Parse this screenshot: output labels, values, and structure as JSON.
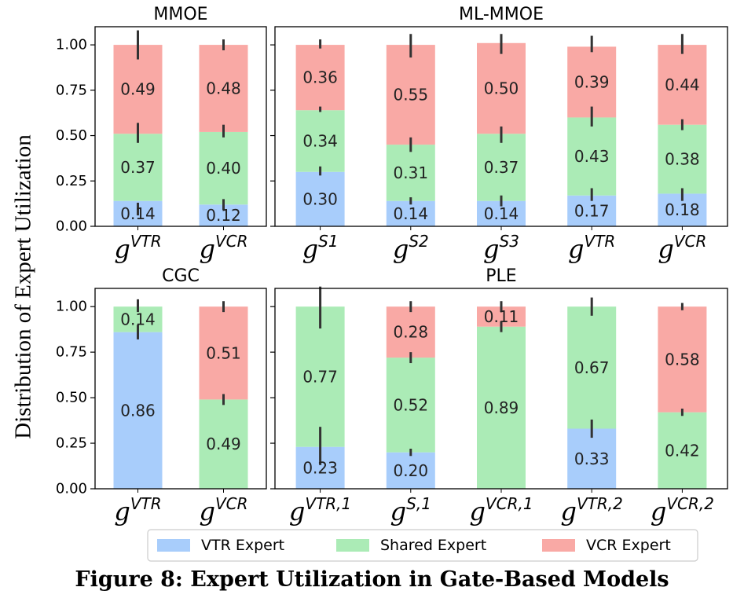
{
  "figure": {
    "ylabel": "Distribution of Expert Utilization",
    "caption": "Figure 8: Expert Utilization in Gate-Based Models"
  },
  "colors": {
    "vtr": "#a8cdfb",
    "shared": "#abebb6",
    "vcr": "#f9a9a5",
    "error": "#333333"
  },
  "legend": {
    "placement": "bottom-center",
    "items": [
      {
        "key": "vtr",
        "label": "VTR Expert"
      },
      {
        "key": "shared",
        "label": "Shared Expert"
      },
      {
        "key": "vcr",
        "label": "VCR Expert"
      }
    ]
  },
  "chart_data": [
    {
      "type": "bar",
      "stacked": true,
      "title": "MMOE",
      "ylim": [
        0,
        1.1
      ],
      "yticks": [
        "0.00",
        "0.25",
        "0.50",
        "0.75",
        "1.00"
      ],
      "categories": [
        {
          "base": "g",
          "sup": "VTR"
        },
        {
          "base": "g",
          "sup": "VCR"
        }
      ],
      "segments": [
        {
          "values": [
            0.14,
            0.37,
            0.49
          ],
          "labels": [
            "0.14",
            "0.37",
            "0.49"
          ],
          "errors": [
            [
              0.06,
              0.13
            ],
            [
              0.46,
              0.57
            ],
            [
              0.92,
              1.08
            ]
          ]
        },
        {
          "values": [
            0.12,
            0.4,
            0.48
          ],
          "labels": [
            "0.12",
            "0.40",
            "0.48"
          ],
          "errors": [
            [
              0.09,
              0.15
            ],
            [
              0.49,
              0.56
            ],
            [
              0.97,
              1.03
            ]
          ]
        }
      ]
    },
    {
      "type": "bar",
      "stacked": true,
      "title": "ML-MMOE",
      "ylim": [
        0,
        1.1
      ],
      "categories": [
        {
          "base": "g",
          "sup": "S1"
        },
        {
          "base": "g",
          "sup": "S2"
        },
        {
          "base": "g",
          "sup": "S3"
        },
        {
          "base": "g",
          "sup": "VTR"
        },
        {
          "base": "g",
          "sup": "VCR"
        }
      ],
      "segments": [
        {
          "values": [
            0.3,
            0.34,
            0.36
          ],
          "labels": [
            "0.30",
            "0.34",
            "0.36"
          ],
          "errors": [
            [
              0.28,
              0.33
            ],
            [
              0.63,
              0.66
            ],
            [
              0.98,
              1.03
            ]
          ]
        },
        {
          "values": [
            0.14,
            0.31,
            0.55
          ],
          "labels": [
            "0.14",
            "0.31",
            "0.55"
          ],
          "errors": [
            [
              0.12,
              0.16
            ],
            [
              0.41,
              0.49
            ],
            [
              0.93,
              1.06
            ]
          ]
        },
        {
          "values": [
            0.14,
            0.37,
            0.5
          ],
          "labels": [
            "0.14",
            "0.37",
            "0.50"
          ],
          "errors": [
            [
              0.11,
              0.17
            ],
            [
              0.46,
              0.55
            ],
            [
              0.95,
              1.06
            ]
          ]
        },
        {
          "values": [
            0.17,
            0.43,
            0.39
          ],
          "labels": [
            "0.17",
            "0.43",
            "0.39"
          ],
          "errors": [
            [
              0.14,
              0.21
            ],
            [
              0.55,
              0.66
            ],
            [
              0.96,
              1.05
            ]
          ]
        },
        {
          "values": [
            0.18,
            0.38,
            0.44
          ],
          "labels": [
            "0.18",
            "0.38",
            "0.44"
          ],
          "errors": [
            [
              0.14,
              0.21
            ],
            [
              0.53,
              0.59
            ],
            [
              0.95,
              1.06
            ]
          ]
        }
      ]
    },
    {
      "type": "bar",
      "stacked": true,
      "title": "CGC",
      "ylim": [
        0,
        1.1
      ],
      "yticks": [
        "0.00",
        "0.25",
        "0.50",
        "0.75",
        "1.00"
      ],
      "categories": [
        {
          "base": "g",
          "sup": "VTR"
        },
        {
          "base": "g",
          "sup": "VCR"
        }
      ],
      "segments": [
        {
          "values": [
            0.86,
            0.14,
            0
          ],
          "labels": [
            "0.86",
            "0.14",
            ""
          ],
          "errors": [
            [
              0.82,
              0.9
            ],
            [
              0.97,
              1.04
            ],
            null
          ]
        },
        {
          "values": [
            0,
            0.49,
            0.51
          ],
          "labels": [
            "",
            "0.49",
            "0.51"
          ],
          "errors": [
            null,
            [
              0.46,
              0.52
            ],
            [
              0.97,
              1.03
            ]
          ]
        }
      ]
    },
    {
      "type": "bar",
      "stacked": true,
      "title": "PLE",
      "ylim": [
        0,
        1.1
      ],
      "categories": [
        {
          "base": "g",
          "sup": "VTR,1"
        },
        {
          "base": "g",
          "sup": "S,1"
        },
        {
          "base": "g",
          "sup": "VCR,1"
        },
        {
          "base": "g",
          "sup": "VTR,2"
        },
        {
          "base": "g",
          "sup": "VCR,2"
        }
      ],
      "segments": [
        {
          "values": [
            0.23,
            0.77,
            0
          ],
          "labels": [
            "0.23",
            "0.77",
            ""
          ],
          "errors": [
            [
              0.13,
              0.34
            ],
            [
              0.88,
              1.11
            ],
            null
          ]
        },
        {
          "values": [
            0.2,
            0.52,
            0.28
          ],
          "labels": [
            "0.20",
            "0.52",
            "0.28"
          ],
          "errors": [
            [
              0.18,
              0.22
            ],
            [
              0.69,
              0.75
            ],
            [
              0.97,
              1.03
            ]
          ]
        },
        {
          "values": [
            0,
            0.89,
            0.11
          ],
          "labels": [
            "",
            "0.89",
            "0.11"
          ],
          "errors": [
            null,
            [
              0.86,
              0.92
            ],
            [
              0.97,
              1.03
            ]
          ]
        },
        {
          "values": [
            0.33,
            0.67,
            0
          ],
          "labels": [
            "0.33",
            "0.67",
            ""
          ],
          "errors": [
            [
              0.28,
              0.38
            ],
            [
              0.95,
              1.05
            ],
            null
          ]
        },
        {
          "values": [
            0,
            0.42,
            0.58
          ],
          "labels": [
            "",
            "0.42",
            "0.58"
          ],
          "errors": [
            null,
            [
              0.4,
              0.44
            ],
            [
              0.98,
              1.02
            ]
          ]
        }
      ]
    }
  ]
}
